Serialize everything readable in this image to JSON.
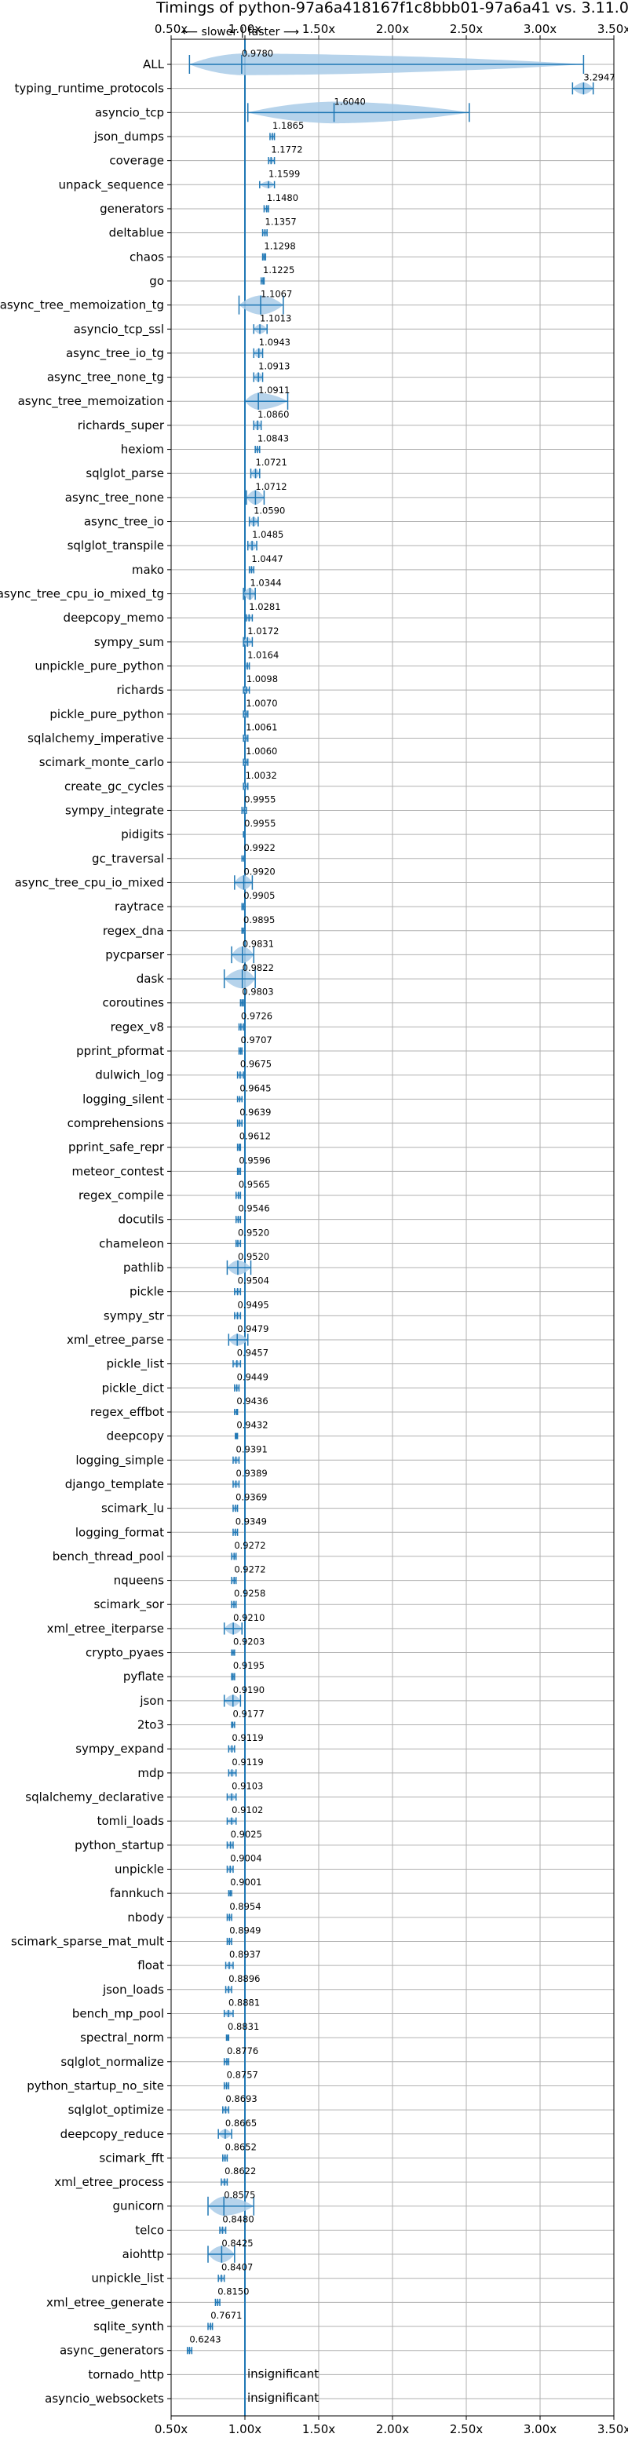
{
  "chart_data": {
    "type": "violin",
    "title": "Timings of python-97a6a418167f1c8bbb01-97a6a41 vs. 3.11.0",
    "direction_hint": "⟵ slower | faster ⟶",
    "x_ticks": [
      0.5,
      1.0,
      1.5,
      2.0,
      2.5,
      3.0,
      3.5
    ],
    "x_tick_labels": [
      "0.50x",
      "1.00x",
      "1.50x",
      "2.00x",
      "2.50x",
      "3.00x",
      "3.50x"
    ],
    "xlim": [
      0.5,
      3.5
    ],
    "grid": true,
    "colors": {
      "violin": "#a9cbe8",
      "line": "#1f77b4",
      "median": "#ff9999",
      "grid": "#b0b0b0",
      "ref_line": "#1f77b4"
    },
    "rows": [
      {
        "name": "ALL",
        "label": "0.9780",
        "value": 0.978,
        "min": 0.6243,
        "max": 3.2947,
        "width": 0.9
      },
      {
        "name": "typing_runtime_protocols",
        "label": "3.2947",
        "value": 3.2947,
        "min": 3.22,
        "max": 3.36,
        "width": 0.5
      },
      {
        "name": "asyncio_tcp",
        "label": "1.6040",
        "value": 1.604,
        "min": 1.02,
        "max": 2.52,
        "width": 0.9
      },
      {
        "name": "json_dumps",
        "label": "1.1865",
        "value": 1.1865,
        "min": 1.17,
        "max": 1.2,
        "width": 0.3
      },
      {
        "name": "coverage",
        "label": "1.1772",
        "value": 1.1772,
        "min": 1.16,
        "max": 1.2,
        "width": 0.3
      },
      {
        "name": "unpack_sequence",
        "label": "1.1599",
        "value": 1.1599,
        "min": 1.1,
        "max": 1.2,
        "width": 0.3
      },
      {
        "name": "generators",
        "label": "1.1480",
        "value": 1.148,
        "min": 1.13,
        "max": 1.16,
        "width": 0.3
      },
      {
        "name": "deltablue",
        "label": "1.1357",
        "value": 1.1357,
        "min": 1.12,
        "max": 1.15,
        "width": 0.3
      },
      {
        "name": "chaos",
        "label": "1.1298",
        "value": 1.1298,
        "min": 1.12,
        "max": 1.14,
        "width": 0.3
      },
      {
        "name": "go",
        "label": "1.1225",
        "value": 1.1225,
        "min": 1.11,
        "max": 1.13,
        "width": 0.3
      },
      {
        "name": "async_tree_memoization_tg",
        "label": "1.1067",
        "value": 1.1067,
        "min": 0.96,
        "max": 1.26,
        "width": 0.8
      },
      {
        "name": "asyncio_tcp_ssl",
        "label": "1.1013",
        "value": 1.1013,
        "min": 1.06,
        "max": 1.15,
        "width": 0.4
      },
      {
        "name": "async_tree_io_tg",
        "label": "1.0943",
        "value": 1.0943,
        "min": 1.06,
        "max": 1.12,
        "width": 0.4
      },
      {
        "name": "async_tree_none_tg",
        "label": "1.0913",
        "value": 1.0913,
        "min": 1.06,
        "max": 1.12,
        "width": 0.4
      },
      {
        "name": "async_tree_memoization",
        "label": "1.0911",
        "value": 1.0911,
        "min": 1.0,
        "max": 1.29,
        "width": 0.7
      },
      {
        "name": "richards_super",
        "label": "1.0860",
        "value": 1.086,
        "min": 1.06,
        "max": 1.11,
        "width": 0.4
      },
      {
        "name": "hexiom",
        "label": "1.0843",
        "value": 1.0843,
        "min": 1.07,
        "max": 1.1,
        "width": 0.3
      },
      {
        "name": "sqlglot_parse",
        "label": "1.0721",
        "value": 1.0721,
        "min": 1.04,
        "max": 1.1,
        "width": 0.4
      },
      {
        "name": "async_tree_none",
        "label": "1.0712",
        "value": 1.0712,
        "min": 1.01,
        "max": 1.13,
        "width": 0.6
      },
      {
        "name": "async_tree_io",
        "label": "1.0590",
        "value": 1.059,
        "min": 1.03,
        "max": 1.09,
        "width": 0.4
      },
      {
        "name": "sqlglot_transpile",
        "label": "1.0485",
        "value": 1.0485,
        "min": 1.02,
        "max": 1.08,
        "width": 0.4
      },
      {
        "name": "mako",
        "label": "1.0447",
        "value": 1.0447,
        "min": 1.03,
        "max": 1.06,
        "width": 0.3
      },
      {
        "name": "async_tree_cpu_io_mixed_tg",
        "label": "1.0344",
        "value": 1.0344,
        "min": 0.99,
        "max": 1.07,
        "width": 0.5
      },
      {
        "name": "deepcopy_memo",
        "label": "1.0281",
        "value": 1.0281,
        "min": 1.01,
        "max": 1.05,
        "width": 0.3
      },
      {
        "name": "sympy_sum",
        "label": "1.0172",
        "value": 1.0172,
        "min": 0.99,
        "max": 1.05,
        "width": 0.4
      },
      {
        "name": "unpickle_pure_python",
        "label": "1.0164",
        "value": 1.0164,
        "min": 1.0,
        "max": 1.03,
        "width": 0.3
      },
      {
        "name": "richards",
        "label": "1.0098",
        "value": 1.0098,
        "min": 0.99,
        "max": 1.03,
        "width": 0.3
      },
      {
        "name": "pickle_pure_python",
        "label": "1.0070",
        "value": 1.007,
        "min": 0.99,
        "max": 1.02,
        "width": 0.3
      },
      {
        "name": "sqlalchemy_imperative",
        "label": "1.0061",
        "value": 1.0061,
        "min": 0.99,
        "max": 1.02,
        "width": 0.3
      },
      {
        "name": "scimark_monte_carlo",
        "label": "1.0060",
        "value": 1.006,
        "min": 0.99,
        "max": 1.02,
        "width": 0.3
      },
      {
        "name": "create_gc_cycles",
        "label": "1.0032",
        "value": 1.0032,
        "min": 0.99,
        "max": 1.02,
        "width": 0.3
      },
      {
        "name": "sympy_integrate",
        "label": "0.9955",
        "value": 0.9955,
        "min": 0.98,
        "max": 1.01,
        "width": 0.3
      },
      {
        "name": "pidigits",
        "label": "0.9955",
        "value": 0.9955,
        "min": 0.99,
        "max": 1.0,
        "width": 0.2
      },
      {
        "name": "gc_traversal",
        "label": "0.9922",
        "value": 0.9922,
        "min": 0.98,
        "max": 1.0,
        "width": 0.2
      },
      {
        "name": "async_tree_cpu_io_mixed",
        "label": "0.9920",
        "value": 0.992,
        "min": 0.93,
        "max": 1.05,
        "width": 0.6
      },
      {
        "name": "raytrace",
        "label": "0.9905",
        "value": 0.9905,
        "min": 0.98,
        "max": 1.0,
        "width": 0.3
      },
      {
        "name": "regex_dna",
        "label": "0.9895",
        "value": 0.9895,
        "min": 0.98,
        "max": 1.0,
        "width": 0.2
      },
      {
        "name": "pycparser",
        "label": "0.9831",
        "value": 0.9831,
        "min": 0.91,
        "max": 1.06,
        "width": 0.7
      },
      {
        "name": "dask",
        "label": "0.9822",
        "value": 0.9822,
        "min": 0.86,
        "max": 1.07,
        "width": 0.8
      },
      {
        "name": "coroutines",
        "label": "0.9803",
        "value": 0.9803,
        "min": 0.97,
        "max": 0.99,
        "width": 0.3
      },
      {
        "name": "regex_v8",
        "label": "0.9726",
        "value": 0.9726,
        "min": 0.96,
        "max": 0.99,
        "width": 0.3
      },
      {
        "name": "pprint_pformat",
        "label": "0.9707",
        "value": 0.9707,
        "min": 0.96,
        "max": 0.98,
        "width": 0.3
      },
      {
        "name": "dulwich_log",
        "label": "0.9675",
        "value": 0.9675,
        "min": 0.95,
        "max": 0.99,
        "width": 0.3
      },
      {
        "name": "logging_silent",
        "label": "0.9645",
        "value": 0.9645,
        "min": 0.95,
        "max": 0.98,
        "width": 0.2
      },
      {
        "name": "comprehensions",
        "label": "0.9639",
        "value": 0.9639,
        "min": 0.95,
        "max": 0.98,
        "width": 0.3
      },
      {
        "name": "pprint_safe_repr",
        "label": "0.9612",
        "value": 0.9612,
        "min": 0.95,
        "max": 0.97,
        "width": 0.3
      },
      {
        "name": "meteor_contest",
        "label": "0.9596",
        "value": 0.9596,
        "min": 0.95,
        "max": 0.97,
        "width": 0.3
      },
      {
        "name": "regex_compile",
        "label": "0.9565",
        "value": 0.9565,
        "min": 0.94,
        "max": 0.97,
        "width": 0.3
      },
      {
        "name": "docutils",
        "label": "0.9546",
        "value": 0.9546,
        "min": 0.94,
        "max": 0.97,
        "width": 0.3
      },
      {
        "name": "chameleon",
        "label": "0.9520",
        "value": 0.952,
        "min": 0.94,
        "max": 0.97,
        "width": 0.3
      },
      {
        "name": "pathlib",
        "label": "0.9520",
        "value": 0.952,
        "min": 0.88,
        "max": 1.04,
        "width": 0.6
      },
      {
        "name": "pickle",
        "label": "0.9504",
        "value": 0.9504,
        "min": 0.93,
        "max": 0.97,
        "width": 0.3
      },
      {
        "name": "sympy_str",
        "label": "0.9495",
        "value": 0.9495,
        "min": 0.93,
        "max": 0.97,
        "width": 0.3
      },
      {
        "name": "xml_etree_parse",
        "label": "0.9479",
        "value": 0.9479,
        "min": 0.89,
        "max": 1.02,
        "width": 0.5
      },
      {
        "name": "pickle_list",
        "label": "0.9457",
        "value": 0.9457,
        "min": 0.92,
        "max": 0.97,
        "width": 0.3
      },
      {
        "name": "pickle_dict",
        "label": "0.9449",
        "value": 0.9449,
        "min": 0.93,
        "max": 0.96,
        "width": 0.3
      },
      {
        "name": "regex_effbot",
        "label": "0.9436",
        "value": 0.9436,
        "min": 0.93,
        "max": 0.95,
        "width": 0.2
      },
      {
        "name": "deepcopy",
        "label": "0.9432",
        "value": 0.9432,
        "min": 0.935,
        "max": 0.95,
        "width": 0.2
      },
      {
        "name": "logging_simple",
        "label": "0.9391",
        "value": 0.9391,
        "min": 0.92,
        "max": 0.96,
        "width": 0.3
      },
      {
        "name": "django_template",
        "label": "0.9389",
        "value": 0.9389,
        "min": 0.92,
        "max": 0.96,
        "width": 0.3
      },
      {
        "name": "scimark_lu",
        "label": "0.9369",
        "value": 0.9369,
        "min": 0.92,
        "max": 0.95,
        "width": 0.3
      },
      {
        "name": "logging_format",
        "label": "0.9349",
        "value": 0.9349,
        "min": 0.92,
        "max": 0.95,
        "width": 0.3
      },
      {
        "name": "bench_thread_pool",
        "label": "0.9272",
        "value": 0.9272,
        "min": 0.91,
        "max": 0.94,
        "width": 0.3
      },
      {
        "name": "nqueens",
        "label": "0.9272",
        "value": 0.9272,
        "min": 0.91,
        "max": 0.94,
        "width": 0.3
      },
      {
        "name": "scimark_sor",
        "label": "0.9258",
        "value": 0.9258,
        "min": 0.91,
        "max": 0.94,
        "width": 0.3
      },
      {
        "name": "xml_etree_iterparse",
        "label": "0.9210",
        "value": 0.921,
        "min": 0.86,
        "max": 0.98,
        "width": 0.5
      },
      {
        "name": "crypto_pyaes",
        "label": "0.9203",
        "value": 0.9203,
        "min": 0.91,
        "max": 0.93,
        "width": 0.2
      },
      {
        "name": "pyflate",
        "label": "0.9195",
        "value": 0.9195,
        "min": 0.91,
        "max": 0.93,
        "width": 0.3
      },
      {
        "name": "json",
        "label": "0.9190",
        "value": 0.919,
        "min": 0.86,
        "max": 0.97,
        "width": 0.5
      },
      {
        "name": "2to3",
        "label": "0.9177",
        "value": 0.9177,
        "min": 0.91,
        "max": 0.93,
        "width": 0.2
      },
      {
        "name": "sympy_expand",
        "label": "0.9119",
        "value": 0.9119,
        "min": 0.89,
        "max": 0.93,
        "width": 0.3
      },
      {
        "name": "mdp",
        "label": "0.9119",
        "value": 0.9119,
        "min": 0.89,
        "max": 0.94,
        "width": 0.3
      },
      {
        "name": "sqlalchemy_declarative",
        "label": "0.9103",
        "value": 0.9103,
        "min": 0.88,
        "max": 0.94,
        "width": 0.3
      },
      {
        "name": "tomli_loads",
        "label": "0.9102",
        "value": 0.9102,
        "min": 0.88,
        "max": 0.94,
        "width": 0.3
      },
      {
        "name": "python_startup",
        "label": "0.9025",
        "value": 0.9025,
        "min": 0.88,
        "max": 0.92,
        "width": 0.3
      },
      {
        "name": "unpickle",
        "label": "0.9004",
        "value": 0.9004,
        "min": 0.88,
        "max": 0.92,
        "width": 0.3
      },
      {
        "name": "fannkuch",
        "label": "0.9001",
        "value": 0.9001,
        "min": 0.89,
        "max": 0.91,
        "width": 0.2
      },
      {
        "name": "nbody",
        "label": "0.8954",
        "value": 0.8954,
        "min": 0.88,
        "max": 0.91,
        "width": 0.3
      },
      {
        "name": "scimark_sparse_mat_mult",
        "label": "0.8949",
        "value": 0.8949,
        "min": 0.88,
        "max": 0.91,
        "width": 0.3
      },
      {
        "name": "float",
        "label": "0.8937",
        "value": 0.8937,
        "min": 0.87,
        "max": 0.92,
        "width": 0.3
      },
      {
        "name": "json_loads",
        "label": "0.8896",
        "value": 0.8896,
        "min": 0.87,
        "max": 0.91,
        "width": 0.3
      },
      {
        "name": "bench_mp_pool",
        "label": "0.8881",
        "value": 0.8881,
        "min": 0.86,
        "max": 0.92,
        "width": 0.3
      },
      {
        "name": "spectral_norm",
        "label": "0.8831",
        "value": 0.8831,
        "min": 0.875,
        "max": 0.89,
        "width": 0.2
      },
      {
        "name": "sqlglot_normalize",
        "label": "0.8776",
        "value": 0.8776,
        "min": 0.86,
        "max": 0.89,
        "width": 0.3
      },
      {
        "name": "python_startup_no_site",
        "label": "0.8757",
        "value": 0.8757,
        "min": 0.86,
        "max": 0.89,
        "width": 0.3
      },
      {
        "name": "sqlglot_optimize",
        "label": "0.8693",
        "value": 0.8693,
        "min": 0.85,
        "max": 0.89,
        "width": 0.3
      },
      {
        "name": "deepcopy_reduce",
        "label": "0.8665",
        "value": 0.8665,
        "min": 0.82,
        "max": 0.91,
        "width": 0.4
      },
      {
        "name": "scimark_fft",
        "label": "0.8652",
        "value": 0.8652,
        "min": 0.85,
        "max": 0.88,
        "width": 0.3
      },
      {
        "name": "xml_etree_process",
        "label": "0.8622",
        "value": 0.8622,
        "min": 0.84,
        "max": 0.88,
        "width": 0.3
      },
      {
        "name": "gunicorn",
        "label": "0.8575",
        "value": 0.8575,
        "min": 0.75,
        "max": 1.06,
        "width": 0.8
      },
      {
        "name": "telco",
        "label": "0.8480",
        "value": 0.848,
        "min": 0.83,
        "max": 0.87,
        "width": 0.3
      },
      {
        "name": "aiohttp",
        "label": "0.8425",
        "value": 0.8425,
        "min": 0.75,
        "max": 0.93,
        "width": 0.7
      },
      {
        "name": "unpickle_list",
        "label": "0.8407",
        "value": 0.8407,
        "min": 0.82,
        "max": 0.86,
        "width": 0.3
      },
      {
        "name": "xml_etree_generate",
        "label": "0.8150",
        "value": 0.815,
        "min": 0.8,
        "max": 0.83,
        "width": 0.3
      },
      {
        "name": "sqlite_synth",
        "label": "0.7671",
        "value": 0.7671,
        "min": 0.75,
        "max": 0.78,
        "width": 0.3
      },
      {
        "name": "async_generators",
        "label": "0.6243",
        "value": 0.6243,
        "min": 0.61,
        "max": 0.64,
        "width": 0.3
      },
      {
        "name": "tornado_http",
        "label": "insignificant",
        "value": null
      },
      {
        "name": "asyncio_websockets",
        "label": "insignificant",
        "value": null
      }
    ]
  }
}
